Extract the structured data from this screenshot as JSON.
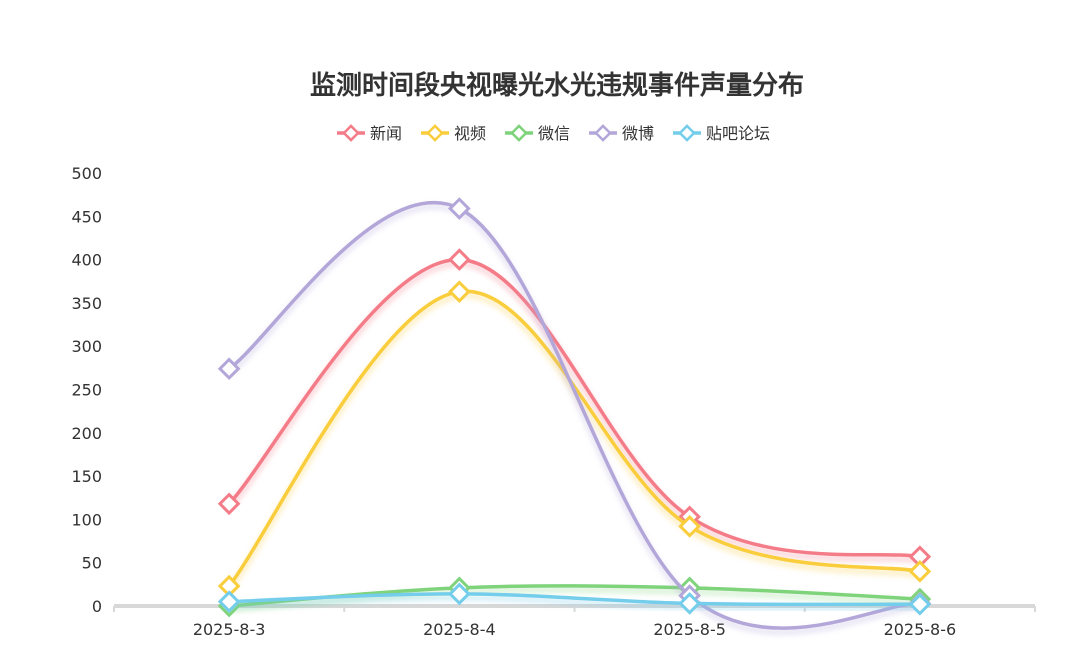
{
  "chart_data": {
    "type": "line",
    "title": "监测时间段央视曝光水光违规事件声量分布",
    "categories": [
      "2025-8-3",
      "2025-8-4",
      "2025-8-5",
      "2025-8-6"
    ],
    "ylim": [
      0,
      500
    ],
    "yticks": [
      0,
      50,
      100,
      150,
      200,
      250,
      300,
      350,
      400,
      450,
      500
    ],
    "legend_position": "top-center",
    "smooth": true,
    "series": [
      {
        "name": "新闻",
        "color": "#F47C88",
        "values": [
          118,
          400,
          103,
          57
        ]
      },
      {
        "name": "视频",
        "color": "#F9CD3C",
        "values": [
          23,
          363,
          92,
          40
        ]
      },
      {
        "name": "微信",
        "color": "#7ED37B",
        "values": [
          0,
          21,
          21,
          8
        ]
      },
      {
        "name": "微博",
        "color": "#B3A6D9",
        "values": [
          274,
          459,
          12,
          3
        ]
      },
      {
        "name": "贴吧论坛",
        "color": "#74CDEB",
        "values": [
          5,
          14,
          3,
          2
        ]
      }
    ]
  }
}
